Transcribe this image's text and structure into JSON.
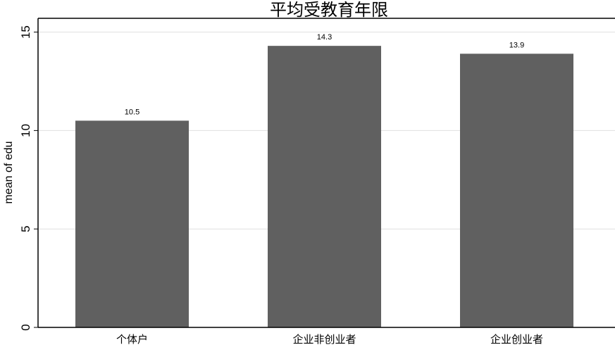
{
  "chart_data": {
    "type": "bar",
    "title": "平均受教育年限",
    "xlabel": "",
    "ylabel": "mean of edu",
    "categories": [
      "个体户",
      "企业非创业者",
      "企业创业者"
    ],
    "values": [
      10.5,
      14.3,
      13.9
    ],
    "data_labels": [
      "10.5",
      "14.3",
      "13.9"
    ],
    "yticks": [
      0,
      5,
      10,
      15
    ],
    "ytick_labels": [
      "0",
      "5",
      "10",
      "15"
    ],
    "ylim": [
      0,
      15.7
    ],
    "grid": true,
    "bar_color": "#606060",
    "grid_color": "#e0e0e0"
  }
}
